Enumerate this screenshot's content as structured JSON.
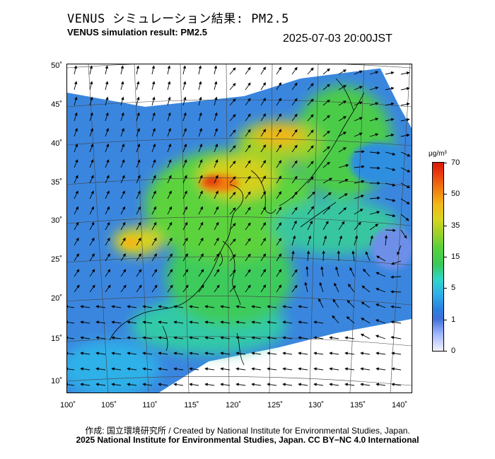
{
  "header": {
    "title_jp": "VENUS シミュレーション結果: PM2.5",
    "title_en": "VENUS simulation result: PM2.5",
    "timestamp": "2025-07-03 20:00JST"
  },
  "map": {
    "lat_labels": [
      "50˚",
      "45˚",
      "40˚",
      "35˚",
      "30˚",
      "25˚",
      "20˚",
      "15˚",
      "10˚"
    ],
    "lon_labels": [
      "100˚",
      "105˚",
      "110˚",
      "115˚",
      "120˚",
      "125˚",
      "130˚",
      "135˚",
      "140˚"
    ],
    "lat_range": [
      9,
      50
    ],
    "lon_range": [
      100,
      141
    ],
    "variable": "PM2.5",
    "shading": "concentration field",
    "vectors": "wind arrows"
  },
  "colorbar": {
    "unit": "μg/m³",
    "labels": [
      "70",
      "50",
      "35",
      "15",
      "5",
      "1",
      "0"
    ],
    "colors": {
      "0": "#f2f2ff",
      "1": "#9fb6ff",
      "5": "#2fb0e8",
      "15": "#39c958",
      "35": "#d7d51f",
      "50": "#f07c10",
      "70": "#d8180a"
    }
  },
  "footer": {
    "credit_line1": "作成: 国立環境研究所 / Created by National Institute for Environmental Studies, Japan.",
    "credit_line2": "2025 National Institute for Environmental Studies, Japan. CC BY−NC 4.0 International"
  }
}
